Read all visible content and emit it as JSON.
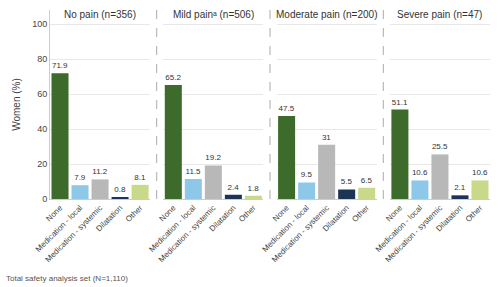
{
  "chart_data": {
    "type": "bar",
    "ylabel": "Women (%)",
    "categories": [
      "None",
      "Medication - local",
      "Medication - systemic",
      "Dilatation",
      "Other"
    ],
    "colors": [
      "#3d6b2c",
      "#8ec8e8",
      "#b8b8b8",
      "#1c3557",
      "#c8d98a"
    ],
    "series": [
      {
        "name": "No pain (n=356)",
        "values": [
          71.9,
          7.9,
          11.2,
          0.8,
          8.1
        ]
      },
      {
        "name": "Mild painᵃ (n=506)",
        "values": [
          65.2,
          11.5,
          19.2,
          2.4,
          1.8
        ]
      },
      {
        "name": "Moderate pain (n=200)",
        "values": [
          47.5,
          9.5,
          31.0,
          5.5,
          6.5
        ]
      },
      {
        "name": "Severe pain (n=47)",
        "values": [
          51.1,
          10.6,
          25.5,
          2.1,
          10.6
        ]
      }
    ],
    "ylim": [
      0,
      108
    ],
    "yticks": [
      0,
      20,
      40,
      60,
      80,
      100
    ],
    "grid": true,
    "data_labels": true,
    "footnote": "Total safety analysis set (N=1,110)"
  }
}
